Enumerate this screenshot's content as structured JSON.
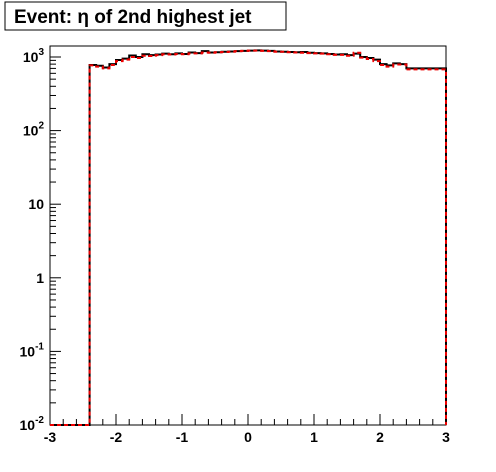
{
  "chart_data": {
    "type": "line",
    "title": "Event: η of 2nd highest jet",
    "xlabel": "",
    "ylabel": "",
    "xlim": [
      -3,
      3
    ],
    "ylim": [
      0.01,
      1300
    ],
    "yscale": "log",
    "grid": false,
    "x_ticks": [
      {
        "value": -3,
        "label": "-3"
      },
      {
        "value": -2,
        "label": "-2"
      },
      {
        "value": -1,
        "label": "-1"
      },
      {
        "value": 0,
        "label": "0"
      },
      {
        "value": 1,
        "label": "1"
      },
      {
        "value": 2,
        "label": "2"
      },
      {
        "value": 3,
        "label": "3"
      }
    ],
    "y_ticks": [
      {
        "value": 0.01,
        "base": "10",
        "exp": "-2"
      },
      {
        "value": 0.1,
        "base": "10",
        "exp": "-1"
      },
      {
        "value": 1,
        "base": "1",
        "exp": ""
      },
      {
        "value": 10,
        "base": "10",
        "exp": ""
      },
      {
        "value": 100,
        "base": "10",
        "exp": "2"
      },
      {
        "value": 1000,
        "base": "10",
        "exp": "3"
      }
    ],
    "bin_edges": [
      -3.0,
      -2.4,
      -2.3,
      -2.2,
      -2.1,
      -2.0,
      -1.9,
      -1.8,
      -1.7,
      -1.6,
      -1.5,
      -1.4,
      -1.3,
      -1.2,
      -1.1,
      -1.0,
      -0.9,
      -0.8,
      -0.7,
      -0.6,
      -0.5,
      -0.4,
      -0.3,
      -0.2,
      -0.1,
      0.0,
      0.1,
      0.2,
      0.3,
      0.4,
      0.5,
      0.6,
      0.7,
      0.8,
      0.9,
      1.0,
      1.1,
      1.2,
      1.3,
      1.4,
      1.5,
      1.6,
      1.7,
      1.8,
      1.9,
      2.0,
      2.1,
      2.2,
      2.3,
      2.4,
      3.0
    ],
    "series": [
      {
        "color": "#000000",
        "style": "solid",
        "values": [
          0.01,
          780,
          760,
          720,
          800,
          910,
          950,
          1050,
          1000,
          1090,
          1060,
          1080,
          1110,
          1090,
          1120,
          1100,
          1150,
          1130,
          1200,
          1150,
          1160,
          1180,
          1190,
          1200,
          1210,
          1220,
          1230,
          1220,
          1210,
          1190,
          1180,
          1170,
          1160,
          1170,
          1140,
          1130,
          1120,
          1100,
          1080,
          1090,
          1060,
          1110,
          1000,
          970,
          920,
          800,
          770,
          820,
          800,
          700,
          0.01
        ]
      },
      {
        "color": "#ee0000",
        "style": "dashed",
        "values": [
          0.01,
          770,
          740,
          700,
          780,
          880,
          920,
          1000,
          970,
          1040,
          1030,
          1060,
          1090,
          1080,
          1100,
          1090,
          1120,
          1120,
          1150,
          1140,
          1160,
          1170,
          1180,
          1200,
          1210,
          1220,
          1220,
          1210,
          1200,
          1180,
          1180,
          1160,
          1150,
          1140,
          1130,
          1120,
          1110,
          1090,
          1070,
          1070,
          1040,
          1140,
          980,
          940,
          880,
          780,
          740,
          790,
          790,
          680,
          0.01
        ]
      }
    ]
  }
}
